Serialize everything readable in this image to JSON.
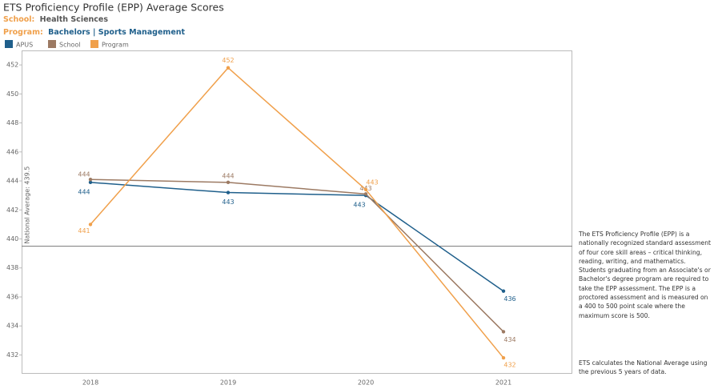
{
  "chart_data": {
    "type": "line",
    "title": "ETS Proficiency Profile (EPP) Average Scores",
    "school_label": "School:",
    "school": "Health Sciences",
    "program_label": "Program:",
    "program": "Bachelors | Sports Management",
    "categories": [
      "2018",
      "2019",
      "2020",
      "2021"
    ],
    "series": [
      {
        "name": "APUS",
        "color": "#1f5f8b",
        "values": [
          443.9,
          443.2,
          443.0,
          436.4
        ],
        "value_labels": [
          "444",
          "443",
          "443",
          "436"
        ]
      },
      {
        "name": "School",
        "color": "#9c7a63",
        "values": [
          444.1,
          443.9,
          443.1,
          433.6
        ],
        "value_labels": [
          "444",
          "444",
          "443",
          "434"
        ]
      },
      {
        "name": "Program",
        "color": "#f0a04b",
        "values": [
          441.0,
          451.8,
          443.4,
          431.8
        ],
        "value_labels": [
          "441",
          "452",
          "443",
          "432"
        ]
      }
    ],
    "ylim": [
      430.7,
      453
    ],
    "yticks": [
      432,
      434,
      436,
      438,
      440,
      442,
      444,
      446,
      448,
      450,
      452
    ],
    "reference_line": {
      "value": 439.5,
      "label": "National Average: 439.5"
    },
    "notes": [
      "The ETS Proficiency Profile (EPP) is a nationally recognized standard assessment of four core skill areas – critical thinking, reading, writing, and mathematics.  Students graduating from an Associate's or Bachelor's degree program are required to take the EPP assessment.  The EPP is a proctored assessment and is measured on a 400 to 500 point scale where the maximum score is 500.",
      "ETS calculates the National Average using the previous 5 years of data."
    ]
  }
}
